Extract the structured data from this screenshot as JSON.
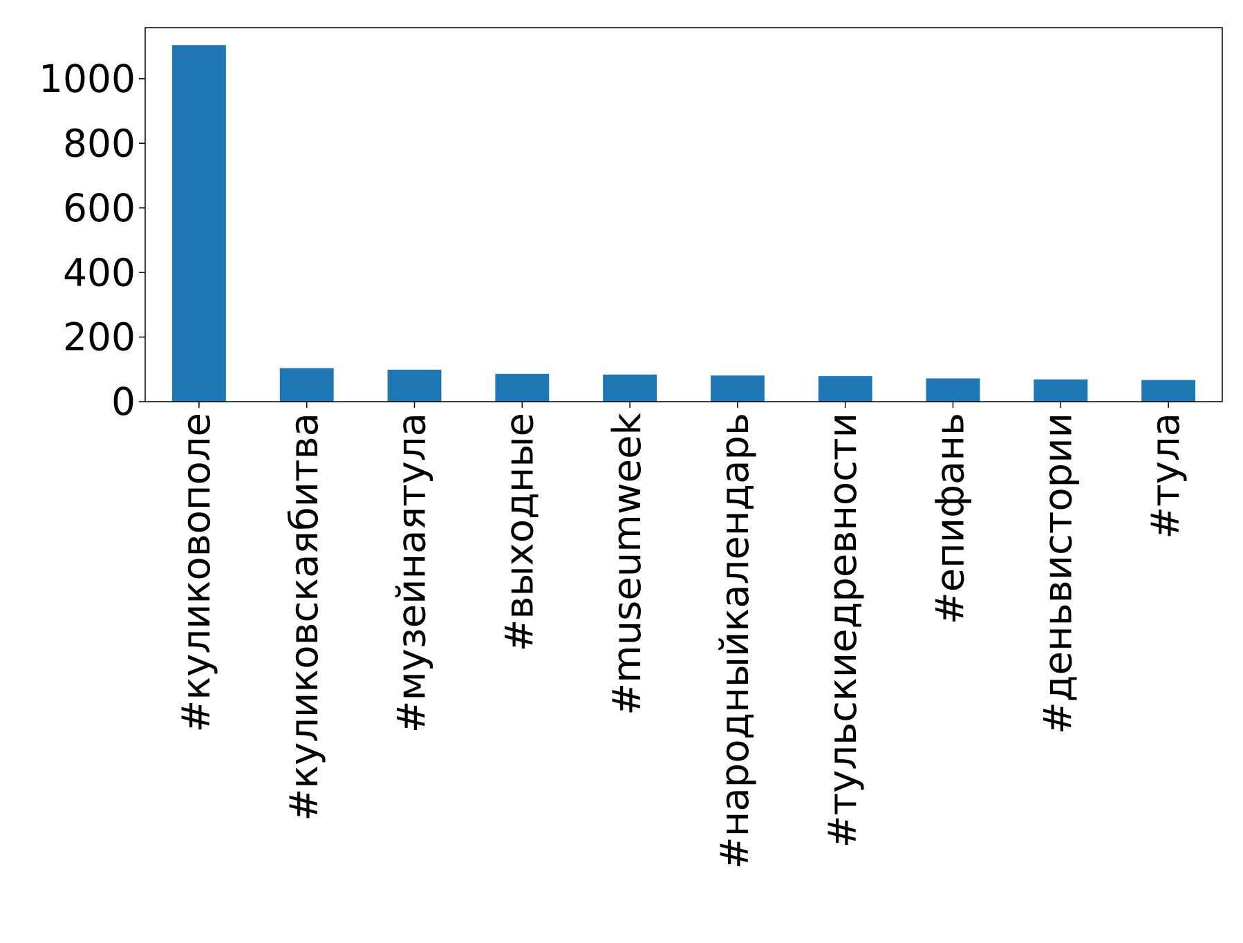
{
  "chart_data": {
    "type": "bar",
    "categories": [
      "#куликовополе",
      "#куликовскаябитва",
      "#музейнаятула",
      "#выходные",
      "#museumweek",
      "#народныйкалендарь",
      "#тульскиедревности",
      "#епифань",
      "#деньвистории",
      "#тула"
    ],
    "values": [
      1104,
      104,
      99,
      86,
      84,
      81,
      79,
      72,
      69,
      67
    ],
    "color": "#1f77b4",
    "ylim": [
      0,
      1158
    ],
    "yticks": [
      0,
      200,
      400,
      600,
      800,
      1000
    ],
    "grid": false
  }
}
